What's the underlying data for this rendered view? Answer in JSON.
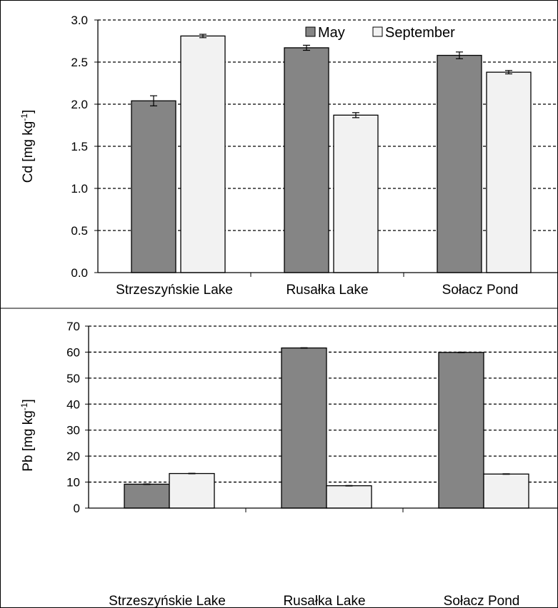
{
  "chart_data": [
    {
      "type": "bar",
      "title": "",
      "xlabel": "",
      "ylabel_main": "Cd [mg kg",
      "ylabel_sup": "-1",
      "ylabel_close": "]",
      "ylim": [
        0,
        3.0
      ],
      "yticks": [
        "0.0",
        "0.5",
        "1.0",
        "1.5",
        "2.0",
        "2.5",
        "3.0"
      ],
      "categories": [
        "Strzeszyńskie Lake",
        "Rusałka Lake",
        "Sołacz Pond"
      ],
      "series": [
        {
          "name": "May",
          "values": [
            2.04,
            2.67,
            2.58
          ],
          "errors": [
            0.06,
            0.03,
            0.04
          ],
          "color": "#858585"
        },
        {
          "name": "September",
          "values": [
            2.81,
            1.87,
            2.38
          ],
          "errors": [
            0.02,
            0.03,
            0.02
          ],
          "color": "#f2f2f2"
        }
      ],
      "grid": true,
      "legend_position": "top-right"
    },
    {
      "type": "bar",
      "title": "",
      "xlabel": "",
      "ylabel_main": "Pb [mg kg",
      "ylabel_sup": "-1",
      "ylabel_close": "]",
      "ylim": [
        0,
        70
      ],
      "yticks": [
        "0",
        "10",
        "20",
        "30",
        "40",
        "50",
        "60",
        "70"
      ],
      "categories": [
        "Strzeszyńskie Lake",
        "Rusałka Lake",
        "Sołacz Pond"
      ],
      "series": [
        {
          "name": "May",
          "values": [
            9.2,
            61.6,
            59.9
          ],
          "errors": [
            0.1,
            0.1,
            0.1
          ],
          "color": "#858585"
        },
        {
          "name": "September",
          "values": [
            13.3,
            8.6,
            13.1
          ],
          "errors": [
            0.1,
            0.1,
            0.1
          ],
          "color": "#f2f2f2"
        }
      ],
      "grid": true,
      "legend_position": "none"
    }
  ]
}
